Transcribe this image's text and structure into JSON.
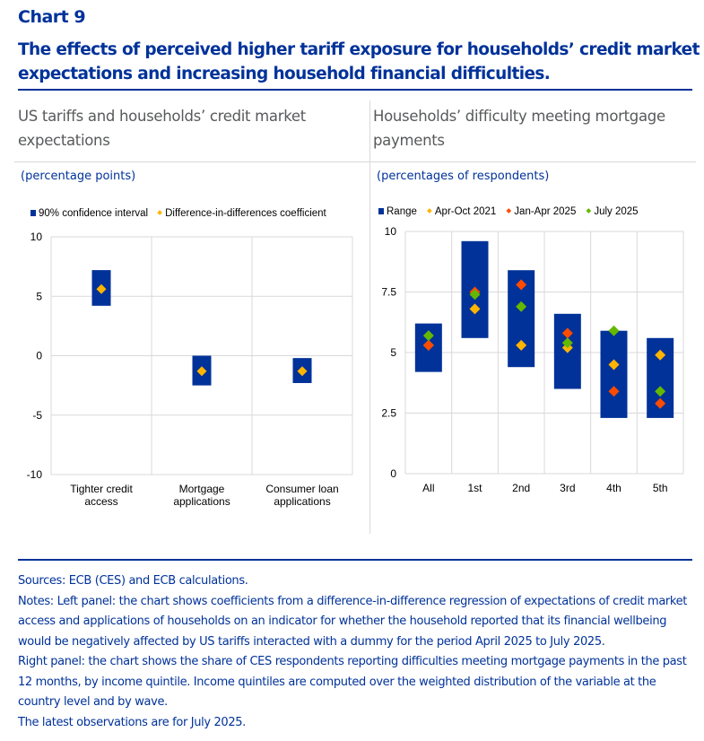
{
  "header": {
    "chart_label": "Chart 9",
    "title": "The effects of perceived higher tariff exposure for households’ credit market expectations and increasing household financial difficulties."
  },
  "chart_data": [
    {
      "type": "range-dot",
      "title": "US tariffs and households’ credit market expectations",
      "unit": "(percentage points)",
      "categories": [
        "Tighter credit access",
        "Mortgage applications",
        "Consumer loan applications"
      ],
      "category_lines": [
        [
          "Tighter credit",
          "access"
        ],
        [
          "Mortgage",
          "applications"
        ],
        [
          "Consumer loan",
          "applications"
        ]
      ],
      "ylim": [
        -10,
        10
      ],
      "yticks": [
        10,
        5,
        0,
        -5,
        -10
      ],
      "ytick_labels": [
        "10",
        "5",
        "0",
        "-5",
        "-10"
      ],
      "grid": true,
      "legend_position": "top",
      "ranges": {
        "name": "90% confidence interval",
        "color": "#003299",
        "low": [
          4.2,
          -2.5,
          -2.3
        ],
        "high": [
          7.2,
          0.0,
          -0.2
        ]
      },
      "series": [
        {
          "name": "Difference-in-differences coefficient",
          "color": "#ffb400",
          "values": [
            5.6,
            -1.3,
            -1.3
          ]
        }
      ]
    },
    {
      "type": "range-dot",
      "title": "Households’ difficulty meeting mortgage payments",
      "unit": "(percentages of respondents)",
      "categories": [
        "All",
        "1st",
        "2nd",
        "3rd",
        "4th",
        "5th"
      ],
      "category_lines": [
        [
          "All"
        ],
        [
          "1st"
        ],
        [
          "2nd"
        ],
        [
          "3rd"
        ],
        [
          "4th"
        ],
        [
          "5th"
        ]
      ],
      "ylim": [
        0,
        10
      ],
      "yticks": [
        10,
        7.5,
        5,
        2.5,
        0
      ],
      "ytick_labels": [
        "10",
        "7.5",
        "5",
        "2.5",
        "0"
      ],
      "grid": true,
      "legend_position": "top",
      "ranges": {
        "name": "Range",
        "color": "#003299",
        "low": [
          4.2,
          5.6,
          4.4,
          3.5,
          2.3,
          2.3
        ],
        "high": [
          6.2,
          9.6,
          8.4,
          6.6,
          5.9,
          5.6
        ]
      },
      "series": [
        {
          "name": "Apr-Oct 2021",
          "color": "#ffb400",
          "values": [
            5.3,
            6.8,
            5.3,
            5.2,
            4.5,
            4.9
          ]
        },
        {
          "name": "Jan-Apr 2025",
          "color": "#ff4b00",
          "values": [
            5.3,
            7.5,
            7.8,
            5.8,
            3.4,
            2.9
          ]
        },
        {
          "name": "July 2025",
          "color": "#65b800",
          "values": [
            5.7,
            7.4,
            6.9,
            5.4,
            5.9,
            3.4
          ]
        }
      ]
    }
  ],
  "footer": {
    "sources": "Sources: ECB (CES) and ECB calculations.",
    "notes_line1": "Notes: Left panel: the chart shows coefficients from a difference-in-difference regression of expectations of credit market access and applications of households on an indicator for whether the household reported that its financial wellbeing would be negatively affected by US tariffs interacted with a dummy for the period April 2025 to July 2025.",
    "notes_line2": "Right panel: the chart shows the share of CES respondents reporting difficulties meeting mortgage payments in the past 12 months, by income quintile. Income quintiles are computed over the weighted distribution of the variable at the country level and by wave.",
    "notes_line3": "The latest observations are for July 2025."
  }
}
